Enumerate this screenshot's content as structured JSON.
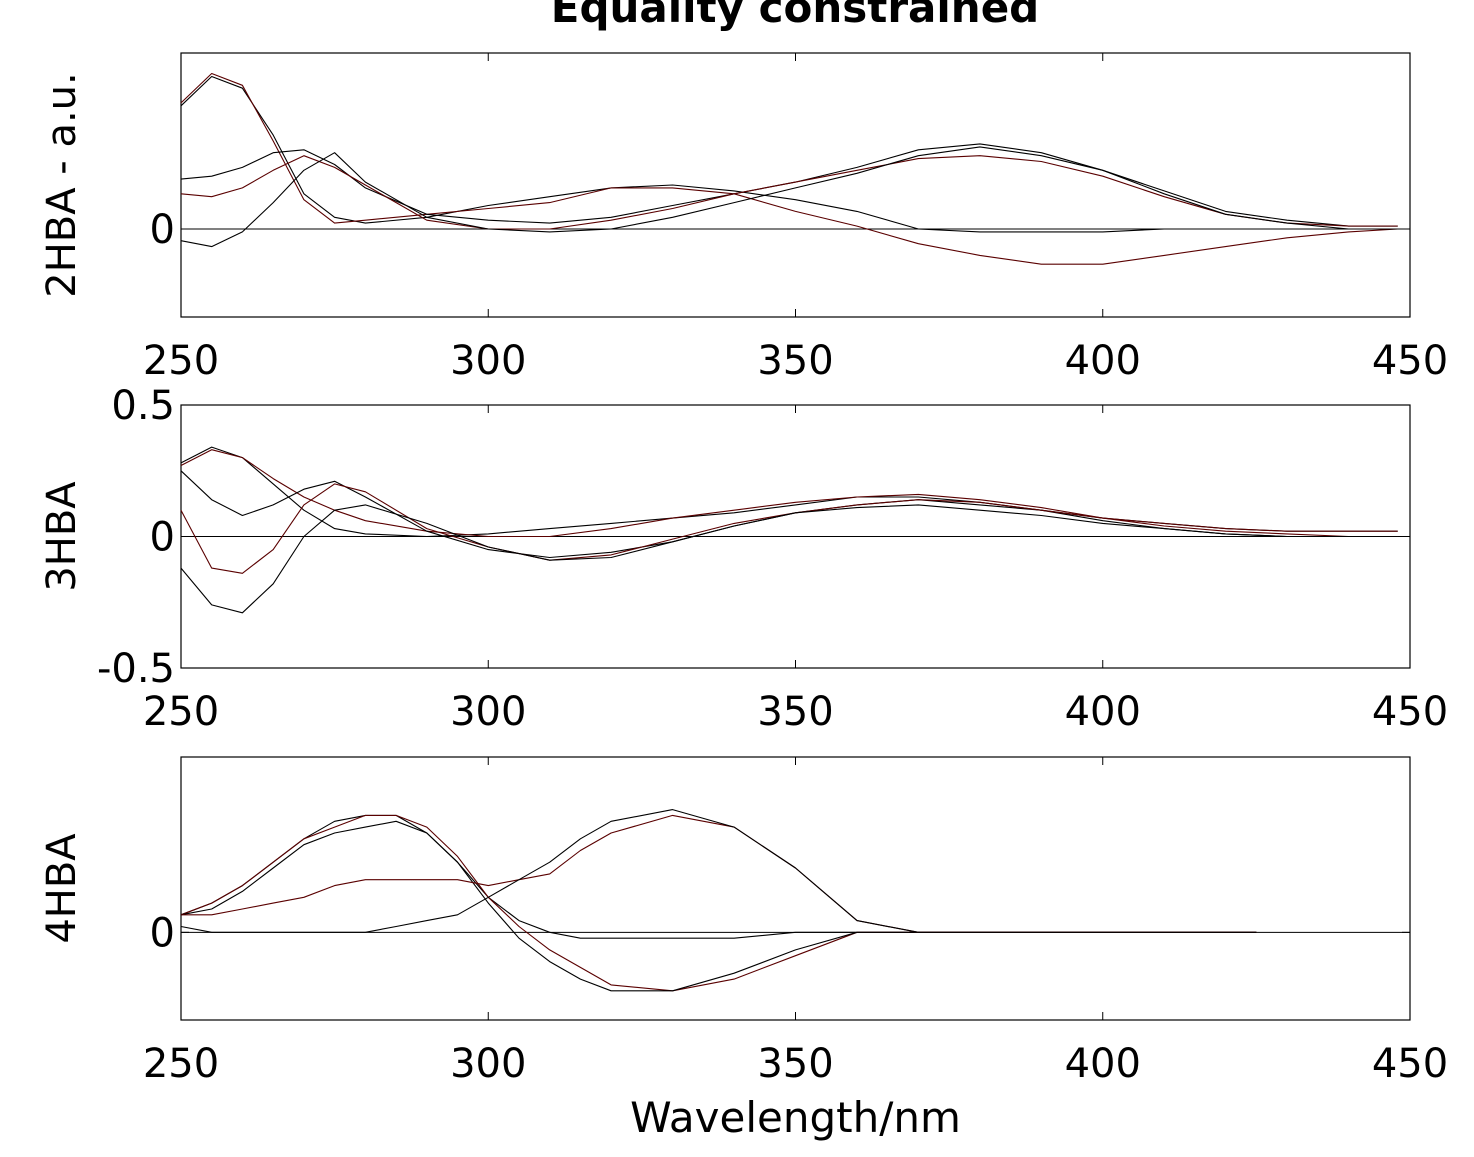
{
  "title": "Equality constrained",
  "chart_data": [
    {
      "type": "line",
      "ylabel": "2HBA - a.u.",
      "xlabel": "",
      "xlim": [
        250,
        450
      ],
      "ylim": [
        -0.3,
        0.6
      ],
      "xticks": [
        "250",
        "300",
        "350",
        "400",
        "450"
      ],
      "yticks": [
        {
          "value": 0,
          "label": "0"
        }
      ],
      "series": [
        {
          "color": "#000000",
          "x": [
            250,
            255,
            260,
            265,
            270,
            275,
            280,
            290,
            300,
            310,
            320,
            330,
            340,
            350,
            360,
            370,
            380,
            390,
            400,
            410,
            420,
            430,
            440,
            448
          ],
          "values": [
            0.42,
            0.52,
            0.48,
            0.32,
            0.12,
            0.04,
            0.02,
            0.04,
            0.08,
            0.11,
            0.14,
            0.15,
            0.13,
            0.1,
            0.06,
            0.0,
            -0.01,
            -0.01,
            -0.01,
            0.0,
            0.0,
            0.0,
            0.0,
            0.0
          ]
        },
        {
          "color": "#5a0000",
          "x": [
            250,
            255,
            260,
            265,
            270,
            275,
            280,
            290,
            300,
            310,
            320,
            330,
            340,
            350,
            360,
            370,
            380,
            390,
            400,
            410,
            420,
            430,
            440,
            448
          ],
          "values": [
            0.43,
            0.53,
            0.49,
            0.3,
            0.1,
            0.02,
            0.03,
            0.05,
            0.07,
            0.09,
            0.14,
            0.14,
            0.12,
            0.06,
            0.01,
            -0.05,
            -0.09,
            -0.12,
            -0.12,
            -0.09,
            -0.06,
            -0.03,
            -0.01,
            0.0
          ]
        },
        {
          "color": "#000000",
          "x": [
            250,
            255,
            260,
            265,
            270,
            275,
            280,
            290,
            300,
            310,
            320,
            330,
            340,
            350,
            360,
            370,
            380,
            390,
            400,
            410,
            420,
            430,
            440,
            448
          ],
          "values": [
            0.17,
            0.18,
            0.21,
            0.26,
            0.27,
            0.22,
            0.14,
            0.05,
            0.03,
            0.02,
            0.04,
            0.08,
            0.12,
            0.16,
            0.21,
            0.27,
            0.29,
            0.26,
            0.2,
            0.13,
            0.06,
            0.03,
            0.01,
            0.01
          ]
        },
        {
          "color": "#5a0000",
          "x": [
            250,
            255,
            260,
            265,
            270,
            275,
            280,
            290,
            300,
            310,
            320,
            330,
            340,
            350,
            360,
            370,
            380,
            390,
            400,
            410,
            420,
            430,
            440,
            448
          ],
          "values": [
            0.12,
            0.11,
            0.14,
            0.2,
            0.25,
            0.21,
            0.15,
            0.03,
            0.0,
            0.0,
            0.03,
            0.07,
            0.12,
            0.16,
            0.2,
            0.24,
            0.25,
            0.23,
            0.18,
            0.11,
            0.05,
            0.02,
            0.01,
            0.01
          ]
        },
        {
          "color": "#000000",
          "x": [
            250,
            255,
            260,
            265,
            270,
            275,
            280,
            290,
            300,
            310,
            320,
            330,
            340,
            350,
            360,
            370,
            380,
            390,
            400,
            410,
            420,
            430,
            440,
            448
          ],
          "values": [
            -0.04,
            -0.06,
            -0.01,
            0.09,
            0.2,
            0.26,
            0.16,
            0.04,
            0.0,
            -0.01,
            0.0,
            0.04,
            0.09,
            0.14,
            0.19,
            0.25,
            0.28,
            0.25,
            0.2,
            0.12,
            0.05,
            0.02,
            0.0,
            0.0
          ]
        }
      ]
    },
    {
      "type": "line",
      "ylabel": "3HBA",
      "xlabel": "",
      "xlim": [
        250,
        450
      ],
      "ylim": [
        -0.5,
        0.5
      ],
      "xticks": [
        "250",
        "300",
        "350",
        "400",
        "450"
      ],
      "yticks": [
        {
          "value": 0.5,
          "label": "0.5"
        },
        {
          "value": 0,
          "label": "0"
        },
        {
          "value": -0.5,
          "label": "-0.5"
        }
      ],
      "series": [
        {
          "color": "#000000",
          "x": [
            250,
            255,
            260,
            265,
            270,
            275,
            280,
            290,
            300,
            310,
            320,
            330,
            340,
            350,
            360,
            370,
            380,
            390,
            400,
            410,
            420,
            430,
            440,
            448
          ],
          "values": [
            0.28,
            0.34,
            0.3,
            0.2,
            0.1,
            0.03,
            0.01,
            0.0,
            0.01,
            0.03,
            0.05,
            0.07,
            0.09,
            0.12,
            0.15,
            0.15,
            0.13,
            0.1,
            0.07,
            0.05,
            0.03,
            0.02,
            0.02,
            0.02
          ]
        },
        {
          "color": "#5a0000",
          "x": [
            250,
            255,
            260,
            265,
            270,
            275,
            280,
            290,
            300,
            310,
            320,
            330,
            340,
            350,
            360,
            370,
            380,
            390,
            400,
            410,
            420,
            430,
            440,
            448
          ],
          "values": [
            0.27,
            0.33,
            0.3,
            0.22,
            0.15,
            0.1,
            0.06,
            0.02,
            0.0,
            0.0,
            0.03,
            0.07,
            0.1,
            0.13,
            0.15,
            0.16,
            0.14,
            0.11,
            0.07,
            0.05,
            0.03,
            0.02,
            0.02,
            0.02
          ]
        },
        {
          "color": "#000000",
          "x": [
            250,
            255,
            260,
            265,
            270,
            275,
            280,
            290,
            300,
            310,
            320,
            330,
            340,
            350,
            360,
            370,
            380,
            390,
            400,
            410,
            420,
            430,
            440,
            448
          ],
          "values": [
            0.25,
            0.14,
            0.08,
            0.12,
            0.18,
            0.21,
            0.15,
            0.02,
            -0.05,
            -0.08,
            -0.06,
            -0.02,
            0.04,
            0.09,
            0.12,
            0.14,
            0.12,
            0.1,
            0.06,
            0.03,
            0.01,
            0.0,
            0.0,
            0.0
          ]
        },
        {
          "color": "#5a0000",
          "x": [
            250,
            255,
            260,
            265,
            270,
            275,
            280,
            290,
            300,
            310,
            320,
            330,
            340,
            350,
            360,
            370,
            380,
            390,
            400,
            410,
            420,
            430,
            440,
            448
          ],
          "values": [
            0.1,
            -0.12,
            -0.14,
            -0.05,
            0.12,
            0.2,
            0.17,
            0.03,
            -0.04,
            -0.09,
            -0.07,
            -0.01,
            0.05,
            0.09,
            0.12,
            0.14,
            0.13,
            0.1,
            0.07,
            0.04,
            0.02,
            0.01,
            0.0,
            0.0
          ]
        },
        {
          "color": "#000000",
          "x": [
            250,
            255,
            260,
            265,
            270,
            275,
            280,
            290,
            300,
            310,
            320,
            330,
            340,
            350,
            360,
            370,
            380,
            390,
            400,
            410,
            420,
            430,
            440,
            448
          ],
          "values": [
            -0.12,
            -0.26,
            -0.29,
            -0.18,
            0.0,
            0.1,
            0.12,
            0.05,
            -0.04,
            -0.09,
            -0.08,
            -0.02,
            0.04,
            0.09,
            0.11,
            0.12,
            0.1,
            0.08,
            0.05,
            0.03,
            0.01,
            0.0,
            0.0,
            0.0
          ]
        }
      ]
    },
    {
      "type": "line",
      "ylabel": "4HBA",
      "xlabel": "Wavelength/nm",
      "xlim": [
        250,
        450
      ],
      "ylim": [
        -0.15,
        0.3
      ],
      "xticks": [
        "250",
        "300",
        "350",
        "400",
        "450"
      ],
      "yticks": [
        {
          "value": 0,
          "label": "0"
        }
      ],
      "series": [
        {
          "color": "#000000",
          "x": [
            250,
            255,
            260,
            265,
            270,
            275,
            280,
            285,
            290,
            295,
            300,
            305,
            310,
            315,
            320,
            330,
            340,
            350,
            360,
            370,
            380,
            390,
            400,
            410,
            420,
            425
          ],
          "values": [
            0.03,
            0.05,
            0.08,
            0.12,
            0.16,
            0.19,
            0.2,
            0.2,
            0.17,
            0.12,
            0.06,
            0.02,
            0.0,
            -0.01,
            -0.01,
            -0.01,
            -0.01,
            0.0,
            0.0,
            0.0,
            0.0,
            0.0,
            0.0,
            0.0,
            0.0,
            0.0
          ]
        },
        {
          "color": "#5a0000",
          "x": [
            250,
            255,
            260,
            265,
            270,
            275,
            280,
            285,
            290,
            295,
            300,
            305,
            310,
            315,
            320,
            330,
            340,
            350,
            360,
            370,
            380,
            390,
            400,
            410,
            420,
            425
          ],
          "values": [
            0.03,
            0.05,
            0.08,
            0.12,
            0.16,
            0.18,
            0.2,
            0.2,
            0.18,
            0.13,
            0.06,
            0.01,
            -0.03,
            -0.06,
            -0.09,
            -0.1,
            -0.08,
            -0.04,
            0.0,
            0.0,
            0.0,
            0.0,
            0.0,
            0.0,
            0.0,
            0.0
          ]
        },
        {
          "color": "#000000",
          "x": [
            250,
            255,
            260,
            265,
            270,
            275,
            280,
            285,
            290,
            295,
            300,
            305,
            310,
            315,
            320,
            330,
            340,
            350,
            360,
            370,
            380,
            390,
            400,
            410,
            420,
            425
          ],
          "values": [
            0.03,
            0.04,
            0.07,
            0.11,
            0.15,
            0.17,
            0.18,
            0.19,
            0.17,
            0.12,
            0.05,
            -0.01,
            -0.05,
            -0.08,
            -0.1,
            -0.1,
            -0.07,
            -0.03,
            0.0,
            0.0,
            0.0,
            0.0,
            0.0,
            0.0,
            0.0,
            0.0
          ]
        },
        {
          "color": "#5a0000",
          "x": [
            250,
            255,
            260,
            265,
            270,
            275,
            280,
            285,
            290,
            295,
            300,
            305,
            310,
            315,
            320,
            330,
            340,
            350,
            360,
            370,
            380,
            390,
            400,
            410,
            420,
            425
          ],
          "values": [
            0.03,
            0.03,
            0.04,
            0.05,
            0.06,
            0.08,
            0.09,
            0.09,
            0.09,
            0.09,
            0.08,
            0.09,
            0.1,
            0.14,
            0.17,
            0.2,
            0.18,
            0.11,
            0.02,
            0.0,
            0.0,
            0.0,
            0.0,
            0.0,
            0.0,
            0.0
          ]
        },
        {
          "color": "#000000",
          "x": [
            250,
            255,
            260,
            265,
            270,
            275,
            280,
            285,
            290,
            295,
            300,
            305,
            310,
            315,
            320,
            330,
            340,
            350,
            360,
            370,
            380,
            390,
            400,
            410,
            420,
            425
          ],
          "values": [
            0.01,
            0.0,
            0.0,
            0.0,
            0.0,
            0.0,
            0.0,
            0.01,
            0.02,
            0.03,
            0.06,
            0.09,
            0.12,
            0.16,
            0.19,
            0.21,
            0.18,
            0.11,
            0.02,
            0.0,
            0.0,
            0.0,
            0.0,
            0.0,
            0.0,
            0.0
          ]
        }
      ]
    }
  ]
}
